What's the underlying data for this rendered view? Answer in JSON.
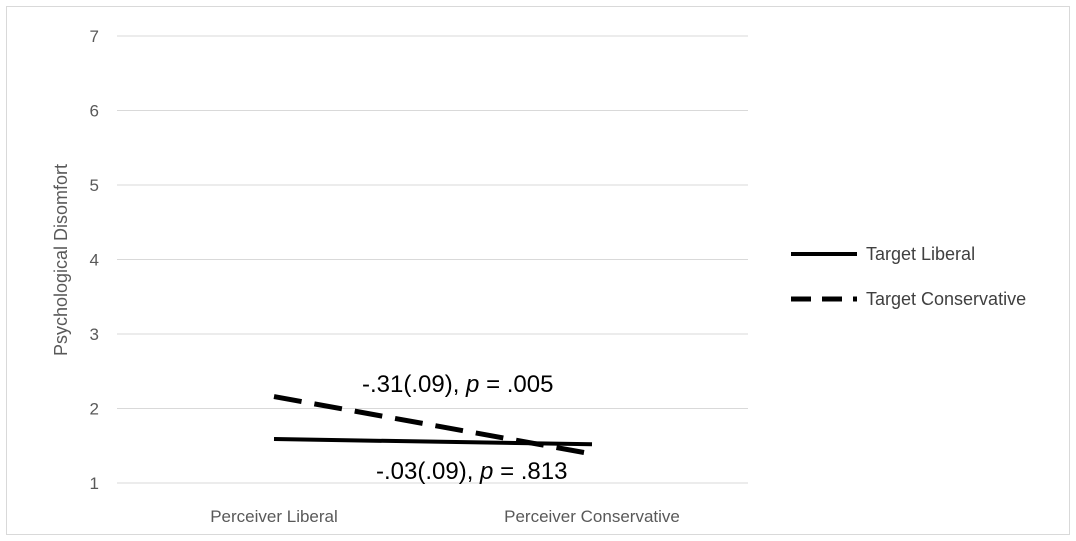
{
  "chart_data": {
    "type": "line",
    "categories": [
      "Perceiver Liberal",
      "Perceiver Conservative"
    ],
    "ylabel": "Psychological Disomfort",
    "ylim": [
      1,
      7
    ],
    "yticks": [
      1,
      2,
      3,
      4,
      5,
      6,
      7
    ],
    "grid": true,
    "legend_position": "right",
    "series": [
      {
        "name": "Target Liberal",
        "values": [
          1.59,
          1.52
        ],
        "style": "solid",
        "color": "#000000"
      },
      {
        "name": "Target Conservative",
        "values": [
          2.16,
          1.39
        ],
        "style": "dashed",
        "color": "#000000"
      }
    ],
    "annotations": [
      {
        "id": "conservative",
        "prefix": "-.31(.09), ",
        "italic": "p",
        "suffix": " = .005"
      },
      {
        "id": "liberal",
        "prefix": "-.03(.09), ",
        "italic": "p",
        "suffix": " = .813"
      }
    ]
  }
}
